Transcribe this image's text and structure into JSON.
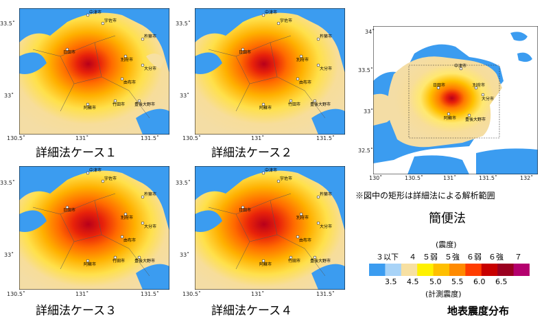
{
  "panels": [
    {
      "caption": "詳細法ケース１",
      "xticks": [
        "130.5˚",
        "131˚",
        "131.5˚"
      ],
      "yticks": [
        "33.5˚",
        "33˚"
      ]
    },
    {
      "caption": "詳細法ケース２",
      "xticks": [
        "130.5˚",
        "131˚",
        "131.5˚"
      ],
      "yticks": [
        "33.5˚",
        "33˚"
      ]
    },
    {
      "caption": "詳細法ケース３",
      "xticks": [
        "130.5˚",
        "131˚",
        "131.5˚"
      ],
      "yticks": [
        "33.5˚",
        "33˚"
      ]
    },
    {
      "caption": "詳細法ケース４",
      "xticks": [
        "130.5˚",
        "131˚",
        "131.5˚"
      ],
      "yticks": [
        "33.5˚",
        "33˚"
      ]
    }
  ],
  "cities": [
    "中津市",
    "宇佐市",
    "杵築市",
    "日田市",
    "別府市",
    "大分市",
    "由布市",
    "竹田市",
    "豊後大野市",
    "阿蘇市"
  ],
  "simple": {
    "xticks": [
      "130˚",
      "130.5˚",
      "131˚",
      "131.5˚",
      "132˚"
    ],
    "yticks": [
      "34˚",
      "33.5˚",
      "33˚",
      "32.5˚"
    ],
    "note": "※図中の矩形は詳細法による解析範囲",
    "caption": "簡便法"
  },
  "legend": {
    "title_top": "(震度)",
    "classes": [
      "３以下",
      "４",
      "５弱",
      "５強",
      "６弱",
      "６強",
      "７"
    ],
    "colors": [
      "#3b9cf0",
      "#a8d3f7",
      "#f7e0a2",
      "#fff100",
      "#ffbf00",
      "#ff8a00",
      "#ff3c00",
      "#c80000",
      "#9a0020",
      "#b4006e"
    ],
    "values": [
      "3.5",
      "4.5",
      "5.0",
      "5.5",
      "6.0",
      "6.5"
    ],
    "title_bottom": "(計測震度)"
  },
  "figure_title": "地表震度分布"
}
